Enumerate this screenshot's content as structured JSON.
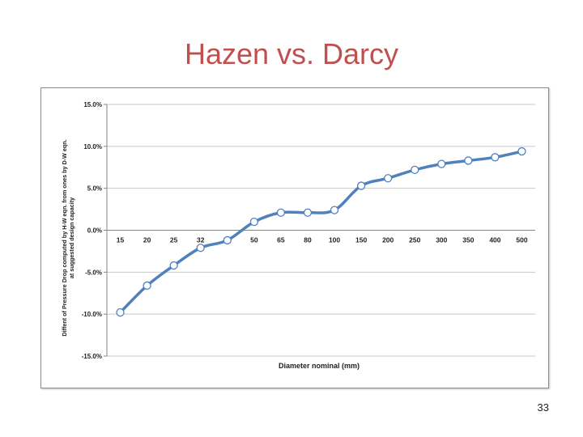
{
  "slide": {
    "title": "Hazen vs. Darcy",
    "page_number": "33"
  },
  "chart_data": {
    "type": "line",
    "title": "",
    "xlabel": "Diameter nominal (mm)",
    "ylabel_lines": [
      "Diffent of Pressure Drop computed by H-W eqn. from ones by D-W eqn.",
      "at suggested design capacity"
    ],
    "categories": [
      "15",
      "20",
      "25",
      "32",
      "40",
      "50",
      "65",
      "80",
      "100",
      "150",
      "200",
      "250",
      "300",
      "350",
      "400",
      "500"
    ],
    "series": [
      {
        "values": [
          -9.8,
          -6.6,
          -4.2,
          -2.1,
          -1.2,
          1.0,
          2.1,
          2.1,
          2.4,
          5.3,
          6.2,
          7.2,
          7.9,
          8.3,
          8.7,
          9.4
        ],
        "color": "#4f81bd",
        "marker": "hollow-circle"
      }
    ],
    "ylim": [
      -15,
      15
    ],
    "yticks": [
      15,
      10,
      5,
      0,
      -5,
      -10,
      -15
    ],
    "ytick_labels": [
      "15.0%",
      "10.0%",
      "5.0%",
      "0.0%",
      "-5.0%",
      "-10.0%",
      "-15.0%"
    ],
    "y_format": "percent",
    "grid": true,
    "legend": "none",
    "colors": {
      "line": "#4f81bd",
      "grid": "#c8c8c8",
      "axis": "#868686",
      "title": "#c0504d"
    }
  }
}
